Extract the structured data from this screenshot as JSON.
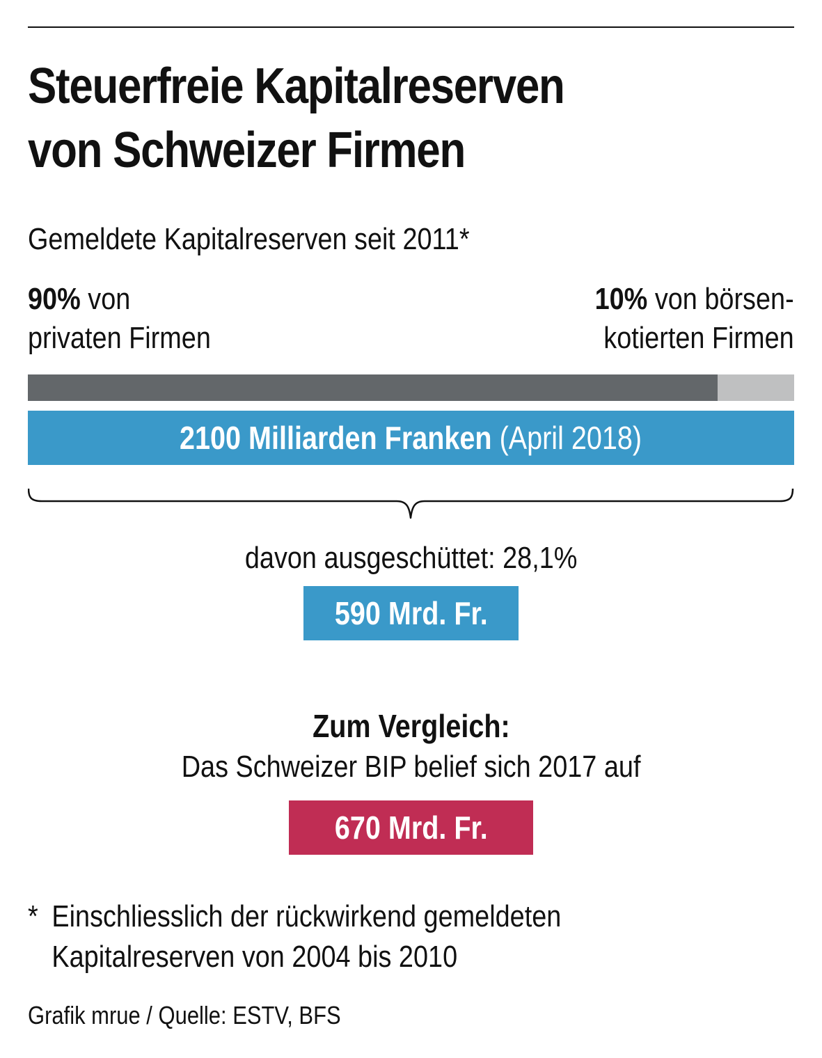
{
  "title_line1": "Steuerfreie Kapitalreserven",
  "title_line2": "von Schweizer Firmen",
  "subtitle": "Gemeldete Kapitalreserven seit 2011*",
  "shares": {
    "private": {
      "percent": "90%",
      "label_a": "von",
      "label_b": "privaten Firmen",
      "value": 90,
      "color": "#63676a"
    },
    "listed": {
      "percent": "10%",
      "label_a": "von börsen-",
      "label_b": "kotierten Firmen",
      "value": 10,
      "color": "#bfc0c1"
    }
  },
  "total": {
    "bold": "2100 Milliarden Franken",
    "light": "(April 2018)",
    "color": "#3a99c9"
  },
  "distributed": {
    "text": "davon ausgeschüttet: 28,1%",
    "value_label": "590 Mrd. Fr.",
    "color": "#3a99c9"
  },
  "comparison": {
    "heading": "Zum Vergleich:",
    "text": "Das Schweizer BIP belief sich 2017 auf",
    "value_label": "670 Mrd. Fr.",
    "color": "#c02d54"
  },
  "footnote": {
    "mark": "*",
    "line1": "Einschliesslich der rückwirkend gemeldeten",
    "line2": "Kapitalreserven von 2004 bis 2010"
  },
  "source": "Grafik mrue / Quelle: ESTV, BFS",
  "chart_data": {
    "type": "bar",
    "title": "Steuerfreie Kapitalreserven von Schweizer Firmen",
    "subtitle": "Gemeldete Kapitalreserven seit 2011*",
    "categories": [
      "privaten Firmen",
      "börsenkotierten Firmen"
    ],
    "values": [
      90,
      10
    ],
    "unit": "%",
    "total_value": 2100,
    "total_unit": "Milliarden Franken",
    "total_date": "April 2018",
    "distributed_percent": 28.1,
    "distributed_value": 590,
    "gdp_2017_value": 670,
    "value_unit": "Mrd. Fr."
  }
}
